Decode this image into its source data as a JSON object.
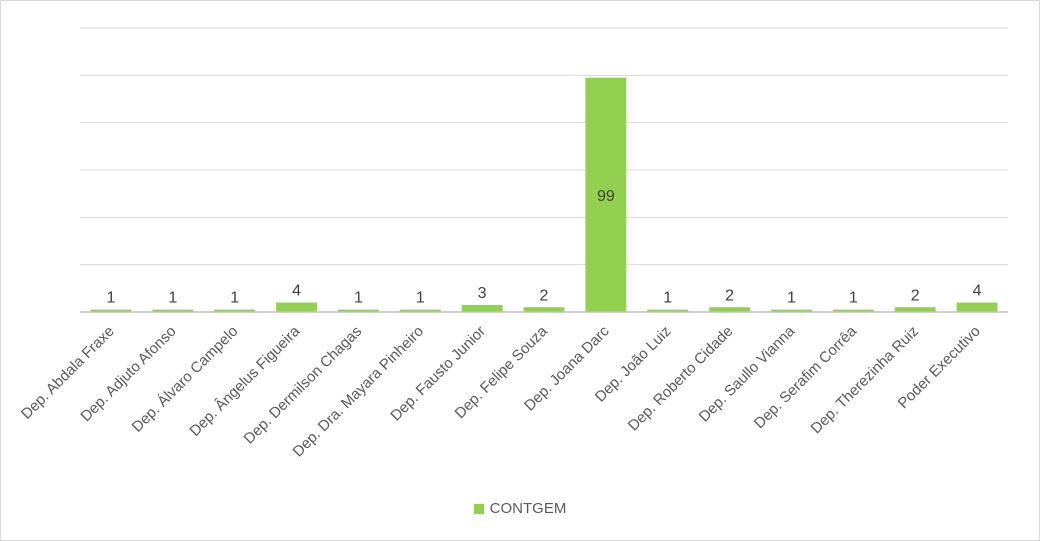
{
  "chart_data": {
    "type": "bar",
    "categories": [
      "Dep. Abdala Fraxe",
      "Dep. Adjuto Afonso",
      "Dep. Álvaro Campelo",
      "Dep. Ângelus Figueira",
      "Dep. Dermilson Chagas",
      "Dep. Dra. Mayara Pinheiro",
      "Dep. Fausto Junior",
      "Dep. Felipe Souza",
      "Dep. Joana Darc",
      "Dep. João Luiz",
      "Dep. Roberto Cidade",
      "Dep. Saullo Vianna",
      "Dep. Serafim Corrêa",
      "Dep. Therezinha Ruiz",
      "Poder Executivo"
    ],
    "series": [
      {
        "name": "CONTGEM",
        "values": [
          1,
          1,
          1,
          4,
          1,
          1,
          3,
          2,
          99,
          1,
          2,
          1,
          1,
          2,
          4
        ],
        "color": "#92d050"
      }
    ],
    "ylim": [
      0,
      120
    ],
    "grid": true,
    "data_labels": true,
    "legend_position": "bottom"
  },
  "legend": {
    "label": "CONTGEM"
  }
}
